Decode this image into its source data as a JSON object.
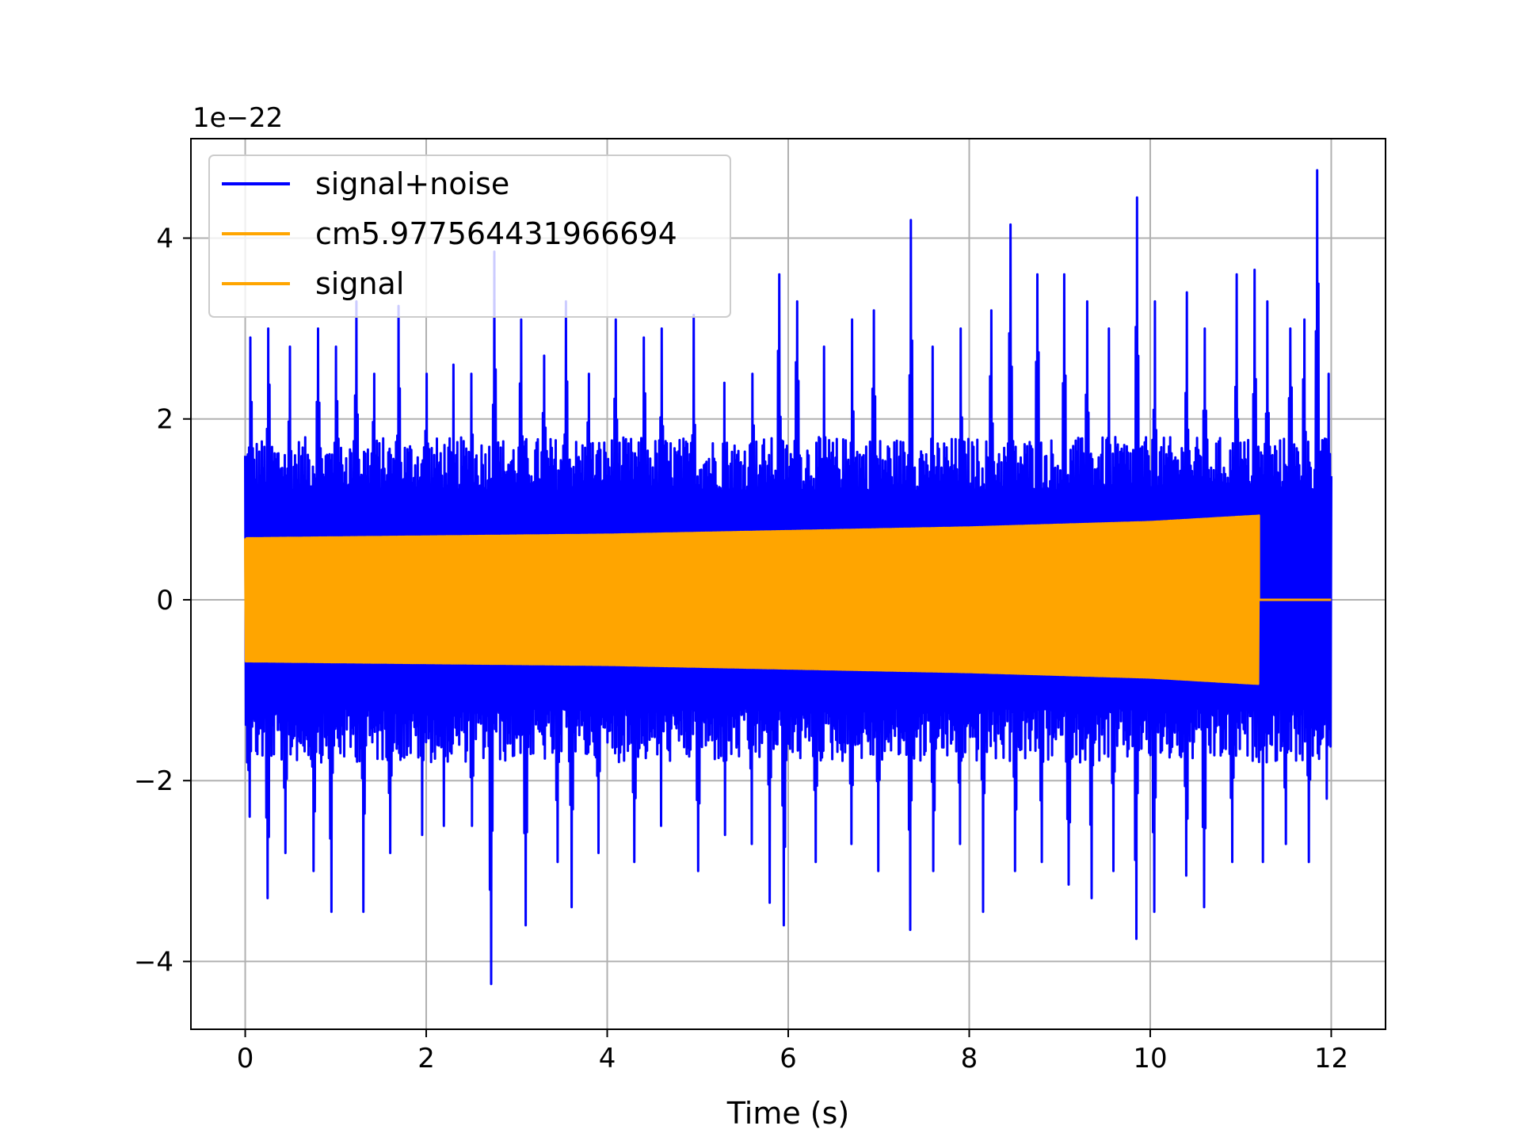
{
  "chart_data": {
    "type": "line",
    "title": "",
    "xlabel": "Time (s)",
    "ylabel": "",
    "y_offset_label": "1e−22",
    "y_scale": 1e-22,
    "xlim": [
      -0.6,
      12.6
    ],
    "ylim": [
      -4.75,
      5.1
    ],
    "x_ticks": [
      0,
      2,
      4,
      6,
      8,
      10,
      12
    ],
    "x_tick_labels": [
      "0",
      "2",
      "4",
      "6",
      "8",
      "10",
      "12"
    ],
    "y_ticks": [
      -4,
      -2,
      0,
      2,
      4
    ],
    "y_tick_labels": [
      "−4",
      "−2",
      "0",
      "2",
      "4"
    ],
    "grid": true,
    "legend_position": "top-left",
    "series": [
      {
        "name": "signal+noise",
        "color": "#0000ff",
        "kind": "noise",
        "x_range": [
          0,
          12
        ],
        "core_amplitude": 1.5,
        "peak_max": [
          [
            0.05,
            2.9
          ],
          [
            0.25,
            3.0
          ],
          [
            0.5,
            2.8
          ],
          [
            0.8,
            3.0
          ],
          [
            1.0,
            2.8
          ],
          [
            1.23,
            3.3
          ],
          [
            1.43,
            2.5
          ],
          [
            1.7,
            3.25
          ],
          [
            2.0,
            2.5
          ],
          [
            2.3,
            2.6
          ],
          [
            2.5,
            2.5
          ],
          [
            2.75,
            3.85
          ],
          [
            3.05,
            3.1
          ],
          [
            3.3,
            2.7
          ],
          [
            3.55,
            3.3
          ],
          [
            3.8,
            2.5
          ],
          [
            4.1,
            3.1
          ],
          [
            4.4,
            2.9
          ],
          [
            4.6,
            3.0
          ],
          [
            4.95,
            3.15
          ],
          [
            5.3,
            2.4
          ],
          [
            5.6,
            2.5
          ],
          [
            5.9,
            3.6
          ],
          [
            6.1,
            3.3
          ],
          [
            6.4,
            2.8
          ],
          [
            6.7,
            3.1
          ],
          [
            6.95,
            3.2
          ],
          [
            7.35,
            4.2
          ],
          [
            7.6,
            2.8
          ],
          [
            7.9,
            3.0
          ],
          [
            8.25,
            3.2
          ],
          [
            8.45,
            4.15
          ],
          [
            8.75,
            3.6
          ],
          [
            9.05,
            3.6
          ],
          [
            9.3,
            3.3
          ],
          [
            9.55,
            3.0
          ],
          [
            9.85,
            4.45
          ],
          [
            10.05,
            3.3
          ],
          [
            10.4,
            3.4
          ],
          [
            10.6,
            3.0
          ],
          [
            10.95,
            3.6
          ],
          [
            11.15,
            3.65
          ],
          [
            11.3,
            3.3
          ],
          [
            11.55,
            3.0
          ],
          [
            11.7,
            3.1
          ],
          [
            11.85,
            4.75
          ],
          [
            11.97,
            2.5
          ]
        ],
        "peak_min": [
          [
            0.05,
            -2.4
          ],
          [
            0.25,
            -3.3
          ],
          [
            0.45,
            -2.8
          ],
          [
            0.75,
            -3.0
          ],
          [
            0.95,
            -3.45
          ],
          [
            1.3,
            -3.45
          ],
          [
            1.6,
            -2.8
          ],
          [
            1.95,
            -2.6
          ],
          [
            2.2,
            -2.5
          ],
          [
            2.5,
            -2.5
          ],
          [
            2.72,
            -4.25
          ],
          [
            3.1,
            -3.6
          ],
          [
            3.45,
            -2.9
          ],
          [
            3.6,
            -3.4
          ],
          [
            3.9,
            -2.8
          ],
          [
            4.3,
            -2.9
          ],
          [
            4.6,
            -2.5
          ],
          [
            5.0,
            -3.0
          ],
          [
            5.3,
            -2.6
          ],
          [
            5.6,
            -2.7
          ],
          [
            5.8,
            -3.35
          ],
          [
            5.95,
            -3.6
          ],
          [
            6.3,
            -2.9
          ],
          [
            6.7,
            -2.7
          ],
          [
            7.0,
            -3.0
          ],
          [
            7.35,
            -3.65
          ],
          [
            7.6,
            -3.0
          ],
          [
            7.9,
            -2.7
          ],
          [
            8.15,
            -3.45
          ],
          [
            8.5,
            -3.0
          ],
          [
            8.8,
            -2.9
          ],
          [
            9.1,
            -3.15
          ],
          [
            9.35,
            -3.3
          ],
          [
            9.6,
            -3.0
          ],
          [
            9.85,
            -3.75
          ],
          [
            10.05,
            -3.45
          ],
          [
            10.4,
            -3.05
          ],
          [
            10.6,
            -3.4
          ],
          [
            10.9,
            -2.9
          ],
          [
            11.25,
            -2.9
          ],
          [
            11.5,
            -2.7
          ],
          [
            11.75,
            -2.9
          ],
          [
            11.95,
            -2.2
          ]
        ]
      },
      {
        "name": "cm5.977564431966694",
        "color": "#ffa500",
        "kind": "hidden",
        "x_range": [
          0,
          11.2
        ]
      },
      {
        "name": "signal",
        "color": "#ffa500",
        "kind": "chirp",
        "x_range": [
          0,
          11.2
        ],
        "tail_end": 12,
        "envelope": [
          [
            0,
            0.68
          ],
          [
            4,
            0.72
          ],
          [
            8,
            0.8
          ],
          [
            10,
            0.86
          ],
          [
            11.2,
            0.93
          ]
        ]
      }
    ]
  }
}
